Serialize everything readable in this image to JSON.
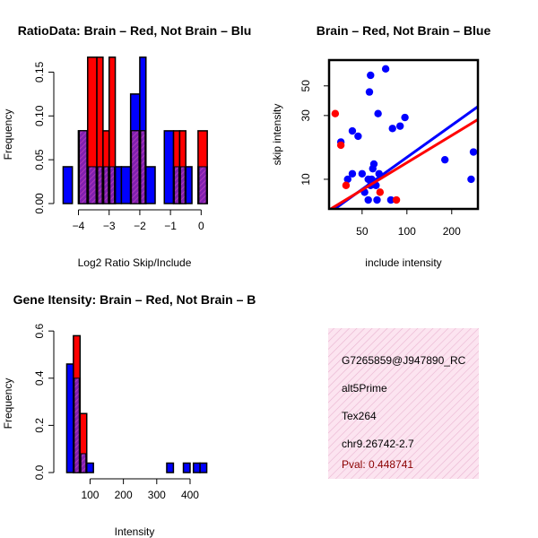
{
  "colors": {
    "red": "#ff0000",
    "blue": "#0000ff",
    "overlap": "#a020a0",
    "info_bg": "#fce4f0",
    "pval": "#8b0000"
  },
  "chart_data": [
    {
      "id": "ratio-hist",
      "type": "bar",
      "title": "RatioData: Brain – Red, Not Brain – Blu",
      "xlabel": "Log2 Ratio Skip/Include",
      "ylabel": "Frequency",
      "xlim": [
        -4.6,
        0.4
      ],
      "ylim": [
        0,
        0.175
      ],
      "xticks": [
        -4,
        -3,
        -2,
        -1,
        0
      ],
      "xtick_labels": [
        "−4",
        "−3",
        "−2",
        "−1",
        "0"
      ],
      "yticks": [
        0.0,
        0.05,
        0.1,
        0.15
      ],
      "ytick_labels": [
        "0.00",
        "0.05",
        "0.10",
        "0.15"
      ],
      "series": [
        {
          "name": "Not Brain",
          "color": "blue",
          "bins": [
            [
              -4.5,
              -4.2,
              0.042
            ],
            [
              -4.0,
              -3.7,
              0.083
            ],
            [
              -3.7,
              -3.4,
              0.042
            ],
            [
              -3.4,
              -3.2,
              0.042
            ],
            [
              -3.2,
              -3.0,
              0.042
            ],
            [
              -3.0,
              -2.8,
              0.042
            ],
            [
              -2.8,
              -2.6,
              0.042
            ],
            [
              -2.6,
              -2.3,
              0.042
            ],
            [
              -2.3,
              -2.0,
              0.125
            ],
            [
              -2.0,
              -1.8,
              0.167
            ],
            [
              -1.8,
              -1.5,
              0.042
            ],
            [
              -1.2,
              -0.9,
              0.083
            ],
            [
              -0.9,
              -0.7,
              0.042
            ],
            [
              -0.7,
              -0.5,
              0.042
            ],
            [
              -0.5,
              -0.3,
              0.042
            ],
            [
              -0.1,
              0.2,
              0.042
            ]
          ]
        },
        {
          "name": "Brain",
          "color": "red",
          "bins": [
            [
              -4.0,
              -3.7,
              0.083
            ],
            [
              -3.7,
              -3.4,
              0.167
            ],
            [
              -3.4,
              -3.2,
              0.167
            ],
            [
              -3.2,
              -3.0,
              0.083
            ],
            [
              -3.0,
              -2.8,
              0.167
            ],
            [
              -2.3,
              -2.0,
              0.083
            ],
            [
              -2.0,
              -1.8,
              0.083
            ],
            [
              -0.9,
              -0.7,
              0.083
            ],
            [
              -0.7,
              -0.5,
              0.083
            ],
            [
              -0.1,
              0.2,
              0.083
            ]
          ]
        }
      ]
    },
    {
      "id": "scatter",
      "type": "scatter",
      "title": "Brain – Red, Not Brain – Blue",
      "xlabel": "include intensity",
      "ylabel": "skip intensity",
      "log_axes": true,
      "xlim": [
        30,
        300
      ],
      "ylim": [
        6,
        78
      ],
      "xticks": [
        50,
        100,
        200
      ],
      "xtick_labels": [
        "50",
        "100",
        "200"
      ],
      "yticks": [
        10,
        30,
        50
      ],
      "ytick_labels": [
        "10",
        "30",
        "50"
      ],
      "series": [
        {
          "name": "Not Brain",
          "color": "blue",
          "x": [
            36,
            40,
            43,
            43,
            47,
            50,
            52,
            55,
            57,
            60,
            62,
            63,
            65,
            56,
            57,
            59,
            80,
            90,
            97,
            72,
            64,
            78,
            180,
            270,
            280,
            55,
            58
          ],
          "y": [
            19,
            10,
            11,
            23,
            21,
            11,
            8,
            7,
            9,
            13,
            9,
            7,
            11,
            45,
            60,
            12,
            24,
            25,
            29,
            67,
            31,
            7,
            14,
            10,
            16,
            10,
            10
          ]
        },
        {
          "name": "Brain",
          "color": "red",
          "x": [
            33,
            36,
            39,
            85,
            66
          ],
          "y": [
            31,
            18,
            9,
            7,
            8
          ]
        }
      ],
      "fit_lines": [
        {
          "name": "Not Brain fit",
          "color": "blue",
          "x": [
            30,
            300
          ],
          "y": [
            5.6,
            35
          ]
        },
        {
          "name": "Brain fit",
          "color": "red",
          "x": [
            30,
            300
          ],
          "y": [
            5.9,
            28
          ]
        }
      ]
    },
    {
      "id": "intensity-hist",
      "type": "bar",
      "title": "Gene Itensity: Brain – Red, Not Brain – B",
      "xlabel": "Intensity",
      "ylabel": "Frequency",
      "xlim": [
        10,
        470
      ],
      "ylim": [
        0,
        0.65
      ],
      "xticks": [
        100,
        200,
        300,
        400
      ],
      "xtick_labels": [
        "100",
        "200",
        "300",
        "400"
      ],
      "yticks": [
        0.0,
        0.2,
        0.4,
        0.6
      ],
      "ytick_labels": [
        "0.0",
        "0.2",
        "0.4",
        "0.6"
      ],
      "series": [
        {
          "name": "Not Brain",
          "color": "blue",
          "bins": [
            [
              30,
              50,
              0.46
            ],
            [
              50,
              70,
              0.4
            ],
            [
              70,
              90,
              0.08
            ],
            [
              90,
              110,
              0.04
            ],
            [
              110,
              130,
              0.0
            ],
            [
              330,
              350,
              0.04
            ],
            [
              380,
              400,
              0.04
            ],
            [
              410,
              430,
              0.04
            ],
            [
              430,
              450,
              0.04
            ]
          ]
        },
        {
          "name": "Brain",
          "color": "red",
          "bins": [
            [
              50,
              70,
              0.58
            ],
            [
              70,
              90,
              0.25
            ]
          ]
        }
      ]
    }
  ],
  "info": {
    "event_id": "G7265859@J947890_RC",
    "event_type": "alt5Prime",
    "gene": "Tex264",
    "location": "chr9.26742-2.7",
    "pval": "Pval: 0.448741"
  }
}
